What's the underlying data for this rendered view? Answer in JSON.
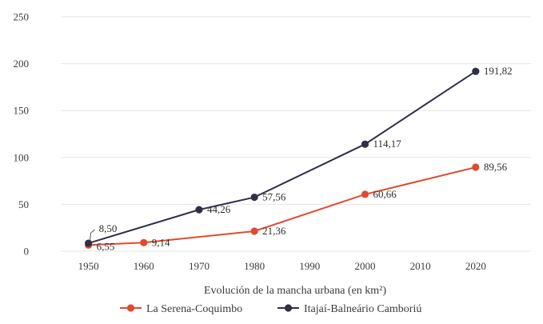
{
  "chart_data": {
    "type": "line",
    "xlabel": "Evolución de la mancha urbana (en km²)",
    "ylabel": "",
    "x_ticks": [
      "1950",
      "1960",
      "1970",
      "1980",
      "1990",
      "2000",
      "2010",
      "2020"
    ],
    "y_ticks": [
      "0",
      "50",
      "100",
      "150",
      "200",
      "250"
    ],
    "xlim": [
      1945,
      2030
    ],
    "ylim": [
      0,
      250
    ],
    "grid": true,
    "legend_position": "bottom",
    "series": [
      {
        "name": "La Serena-Coquimbo",
        "color": "#e04a2f",
        "x": [
          1950,
          1960,
          1980,
          2000,
          2020
        ],
        "values": [
          6.55,
          9.14,
          21.36,
          60.66,
          89.56
        ],
        "labels": [
          "6,55",
          "9,14",
          "21,36",
          "60,66",
          "89,56"
        ]
      },
      {
        "name": "Itajaí-Balneário Camboriú",
        "color": "#2f3048",
        "x": [
          1950,
          1970,
          1980,
          2000,
          2020
        ],
        "values": [
          8.5,
          44.26,
          57.56,
          114.17,
          191.82
        ],
        "labels": [
          "8,50",
          "44,26",
          "57,56",
          "114,17",
          "191,82"
        ]
      }
    ]
  }
}
